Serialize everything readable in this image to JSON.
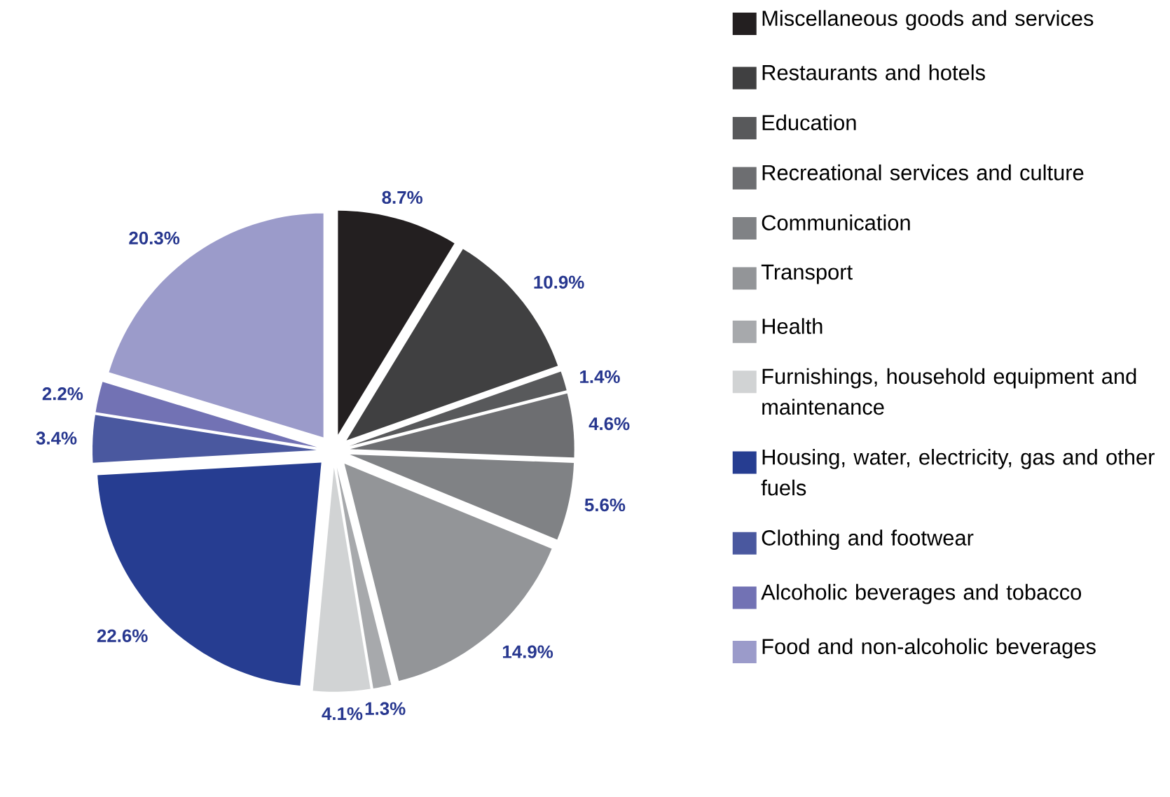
{
  "chart_data": {
    "type": "pie",
    "categories": [
      "Miscellaneous goods and services",
      "Restaurants and hotels",
      "Education",
      "Recreational services and culture",
      "Communication",
      "Transport",
      "Health",
      "Furnishings, household equipment and maintenance",
      "Housing, water, electricity, gas and other fuels",
      "Clothing and footwear",
      "Alcoholic beverages and tobacco",
      "Food and non-alcoholic beverages"
    ],
    "values": [
      8.7,
      10.9,
      1.4,
      4.6,
      5.6,
      14.9,
      1.3,
      4.1,
      22.6,
      3.4,
      2.2,
      20.3
    ],
    "value_labels": [
      "8.7%",
      "10.9%",
      "1.4%",
      "4.6%",
      "5.6%",
      "14.9%",
      "1.3%",
      "4.1%",
      "22.6%",
      "3.4%",
      "2.2%",
      "20.3%"
    ],
    "colors": [
      "#231f20",
      "#404041",
      "#58595b",
      "#6d6e71",
      "#808285",
      "#939598",
      "#a7a9ac",
      "#d1d3d4",
      "#263d91",
      "#4a589f",
      "#7272b4",
      "#9b9bca"
    ],
    "legend": "right"
  }
}
